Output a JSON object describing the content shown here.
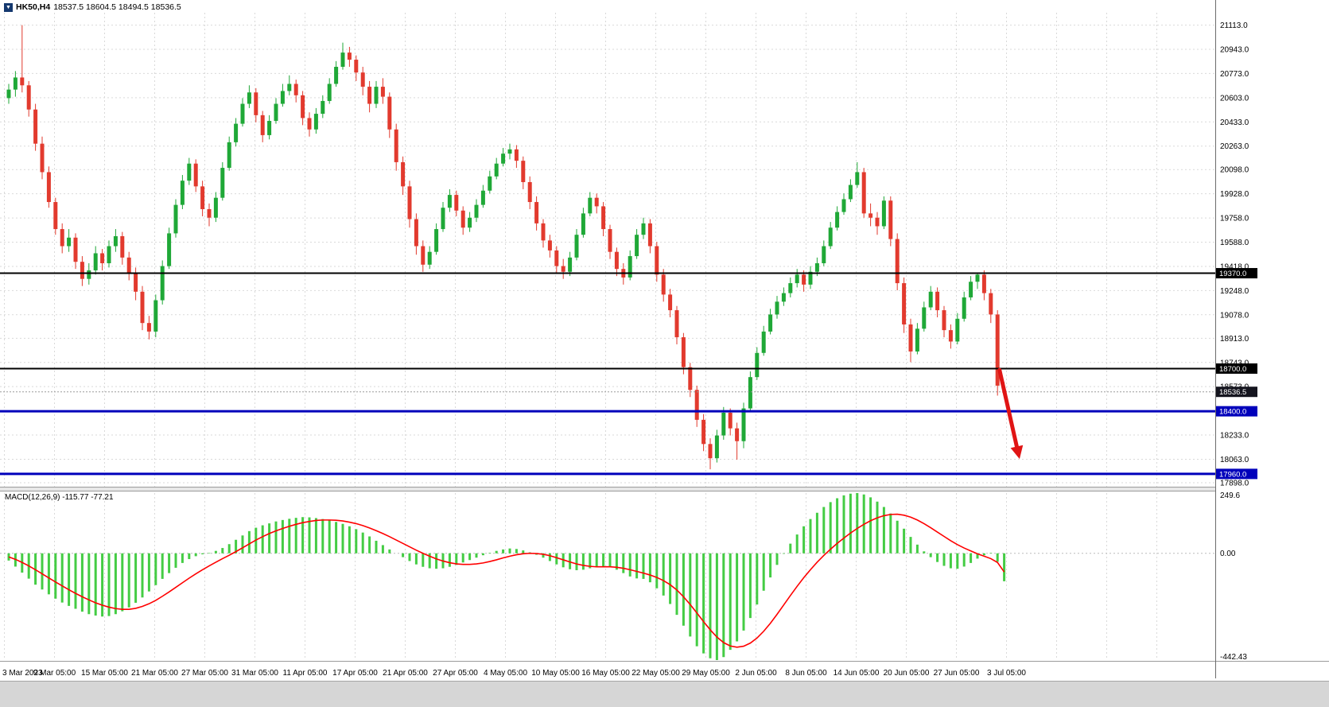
{
  "window": {
    "symbol_period": "HK50,H4",
    "ohlc_text": "18537.5 18604.5 18494.5 18536.5"
  },
  "indicator_label": "MACD(12,26,9) -115.77 -77.21",
  "price_axis": {
    "labels": [
      "21113.0",
      "20943.0",
      "20773.0",
      "20603.0",
      "20433.0",
      "20263.0",
      "20098.0",
      "19928.0",
      "19758.0",
      "19588.0",
      "19418.0",
      "19248.0",
      "19078.0",
      "18913.0",
      "18743.0",
      "18573.0",
      "18233.0",
      "18063.0",
      "17898.0"
    ],
    "badges": [
      {
        "value": "19370.0",
        "price": 19370.0,
        "color": "#000000"
      },
      {
        "value": "18700.0",
        "price": 18700.0,
        "color": "#000000"
      },
      {
        "value": "18536.5",
        "price": 18536.5,
        "color": "#15151f"
      },
      {
        "value": "18400.0",
        "price": 18400.0,
        "color": "#0000bb"
      },
      {
        "value": "17960.0",
        "price": 17960.0,
        "color": "#0000bb"
      }
    ]
  },
  "time_axis": {
    "labels": [
      "3 Mar 2023",
      "9 Mar 05:00",
      "15 Mar 05:00",
      "21 Mar 05:00",
      "27 Mar 05:00",
      "31 Mar 05:00",
      "11 Apr 05:00",
      "17 Apr 05:00",
      "21 Apr 05:00",
      "27 Apr 05:00",
      "4 May 05:00",
      "10 May 05:00",
      "16 May 05:00",
      "22 May 05:00",
      "29 May 05:00",
      "2 Jun 05:00",
      "8 Jun 05:00",
      "14 Jun 05:00",
      "20 Jun 05:00",
      "27 Jun 05:00",
      "3 Jul 05:00"
    ]
  },
  "macd_axis": {
    "max_label": "249.6",
    "zero_label": "0.00",
    "min_label": "-442.43"
  },
  "colors": {
    "candle_up": "#1fa837",
    "candle_down": "#e23a2e",
    "macd_histogram": "#44cc44",
    "macd_signal": "#ff0000",
    "grid": "#d9d9d9",
    "axis_line": "#6b6b6b",
    "arrow": "#e01414",
    "separator_fill": "#e8e8e8",
    "separator_edge": "#9a9a9a"
  },
  "chart_data": {
    "type": "candlestick",
    "title": "HK50,H4",
    "symbol": "HK50",
    "timeframe": "H4",
    "last_ohlc": {
      "open": 18537.5,
      "high": 18604.5,
      "low": 18494.5,
      "close": 18536.5
    },
    "bid_price": 18536.5,
    "price_axis_range": [
      17870,
      21200
    ],
    "levels": [
      {
        "price": 19370.0,
        "color": "#000000",
        "width": 2
      },
      {
        "price": 18700.0,
        "color": "#000000",
        "width": 2
      },
      {
        "price": 18400.0,
        "color": "#0000bb",
        "width": 3
      },
      {
        "price": 17960.0,
        "color": "#0000bb",
        "width": 3
      }
    ],
    "annotation_arrow": {
      "direction": "down-right",
      "color": "#e01414",
      "from": {
        "bar": 148.6,
        "price": 18690
      },
      "to": {
        "bar": 151.6,
        "price": 18065
      }
    },
    "candles": [
      [
        20600,
        20700,
        20560,
        20660
      ],
      [
        20660,
        20790,
        20610,
        20745
      ],
      [
        20745,
        21113,
        20640,
        20690
      ],
      [
        20690,
        20720,
        20470,
        20520
      ],
      [
        20520,
        20560,
        20230,
        20280
      ],
      [
        20280,
        20330,
        20030,
        20080
      ],
      [
        20080,
        20120,
        19830,
        19870
      ],
      [
        19870,
        19900,
        19640,
        19680
      ],
      [
        19680,
        19720,
        19510,
        19560
      ],
      [
        19560,
        19680,
        19520,
        19620
      ],
      [
        19620,
        19650,
        19400,
        19450
      ],
      [
        19450,
        19490,
        19280,
        19330
      ],
      [
        19330,
        19440,
        19290,
        19390
      ],
      [
        19390,
        19560,
        19360,
        19510
      ],
      [
        19510,
        19540,
        19390,
        19440
      ],
      [
        19440,
        19600,
        19410,
        19560
      ],
      [
        19560,
        19680,
        19520,
        19630
      ],
      [
        19630,
        19660,
        19430,
        19480
      ],
      [
        19480,
        19520,
        19320,
        19370
      ],
      [
        19370,
        19410,
        19180,
        19240
      ],
      [
        19240,
        19280,
        18970,
        19020
      ],
      [
        19020,
        19070,
        18905,
        18960
      ],
      [
        18960,
        19220,
        18920,
        19180
      ],
      [
        19180,
        19460,
        19150,
        19420
      ],
      [
        19420,
        19690,
        19400,
        19650
      ],
      [
        19650,
        19890,
        19620,
        19850
      ],
      [
        19850,
        20060,
        19820,
        20020
      ],
      [
        20020,
        20180,
        19990,
        20140
      ],
      [
        20140,
        20170,
        19940,
        19980
      ],
      [
        19980,
        20020,
        19770,
        19820
      ],
      [
        19820,
        19860,
        19700,
        19760
      ],
      [
        19760,
        19940,
        19730,
        19900
      ],
      [
        19900,
        20150,
        19880,
        20110
      ],
      [
        20110,
        20330,
        20090,
        20290
      ],
      [
        20290,
        20460,
        20260,
        20420
      ],
      [
        20420,
        20600,
        20400,
        20560
      ],
      [
        20560,
        20690,
        20530,
        20640
      ],
      [
        20640,
        20670,
        20430,
        20480
      ],
      [
        20480,
        20510,
        20290,
        20340
      ],
      [
        20340,
        20480,
        20310,
        20440
      ],
      [
        20440,
        20600,
        20420,
        20560
      ],
      [
        20560,
        20700,
        20540,
        20650
      ],
      [
        20650,
        20760,
        20620,
        20700
      ],
      [
        20700,
        20730,
        20570,
        20620
      ],
      [
        20620,
        20650,
        20410,
        20460
      ],
      [
        20460,
        20500,
        20330,
        20380
      ],
      [
        20380,
        20530,
        20350,
        20490
      ],
      [
        20490,
        20620,
        20460,
        20580
      ],
      [
        20580,
        20740,
        20560,
        20700
      ],
      [
        20700,
        20860,
        20680,
        20820
      ],
      [
        20820,
        20990,
        20800,
        20920
      ],
      [
        20920,
        20960,
        20820,
        20870
      ],
      [
        20870,
        20900,
        20720,
        20780
      ],
      [
        20780,
        20820,
        20620,
        20680
      ],
      [
        20680,
        20720,
        20500,
        20560
      ],
      [
        20560,
        20720,
        20530,
        20680
      ],
      [
        20680,
        20740,
        20560,
        20610
      ],
      [
        20610,
        20640,
        20320,
        20380
      ],
      [
        20380,
        20420,
        20090,
        20150
      ],
      [
        20150,
        20190,
        19920,
        19980
      ],
      [
        19980,
        20020,
        19690,
        19750
      ],
      [
        19750,
        19790,
        19500,
        19560
      ],
      [
        19560,
        19600,
        19380,
        19430
      ],
      [
        19430,
        19560,
        19400,
        19520
      ],
      [
        19520,
        19720,
        19500,
        19680
      ],
      [
        19680,
        19870,
        19660,
        19830
      ],
      [
        19830,
        19960,
        19800,
        19920
      ],
      [
        19920,
        19950,
        19770,
        19810
      ],
      [
        19810,
        19840,
        19640,
        19690
      ],
      [
        19690,
        19800,
        19660,
        19760
      ],
      [
        19760,
        19890,
        19730,
        19850
      ],
      [
        19850,
        19990,
        19830,
        19950
      ],
      [
        19950,
        20090,
        19930,
        20050
      ],
      [
        20050,
        20180,
        20030,
        20140
      ],
      [
        20140,
        20250,
        20120,
        20210
      ],
      [
        20210,
        20280,
        20170,
        20240
      ],
      [
        20240,
        20270,
        20110,
        20160
      ],
      [
        20160,
        20190,
        19960,
        20010
      ],
      [
        20010,
        20050,
        19820,
        19870
      ],
      [
        19870,
        19910,
        19670,
        19720
      ],
      [
        19720,
        19750,
        19550,
        19600
      ],
      [
        19600,
        19640,
        19480,
        19530
      ],
      [
        19530,
        19560,
        19370,
        19420
      ],
      [
        19420,
        19470,
        19330,
        19380
      ],
      [
        19380,
        19520,
        19350,
        19480
      ],
      [
        19480,
        19680,
        19460,
        19640
      ],
      [
        19640,
        19830,
        19620,
        19790
      ],
      [
        19790,
        19940,
        19770,
        19900
      ],
      [
        19900,
        19930,
        19790,
        19840
      ],
      [
        19840,
        19870,
        19630,
        19680
      ],
      [
        19680,
        19710,
        19470,
        19520
      ],
      [
        19520,
        19550,
        19350,
        19400
      ],
      [
        19400,
        19440,
        19290,
        19340
      ],
      [
        19340,
        19530,
        19320,
        19490
      ],
      [
        19490,
        19680,
        19470,
        19640
      ],
      [
        19640,
        19760,
        19610,
        19720
      ],
      [
        19720,
        19750,
        19510,
        19560
      ],
      [
        19560,
        19590,
        19310,
        19360
      ],
      [
        19360,
        19400,
        19170,
        19220
      ],
      [
        19220,
        19260,
        19060,
        19110
      ],
      [
        19110,
        19140,
        18870,
        18920
      ],
      [
        18920,
        18950,
        18660,
        18710
      ],
      [
        18710,
        18740,
        18500,
        18550
      ],
      [
        18550,
        18580,
        18290,
        18340
      ],
      [
        18340,
        18380,
        18120,
        18170
      ],
      [
        18170,
        18210,
        17992,
        18070
      ],
      [
        18070,
        18270,
        18040,
        18230
      ],
      [
        18230,
        18430,
        18200,
        18390
      ],
      [
        18390,
        18420,
        18230,
        18280
      ],
      [
        18280,
        18320,
        18060,
        18190
      ],
      [
        18190,
        18460,
        18140,
        18420
      ],
      [
        18420,
        18680,
        18400,
        18640
      ],
      [
        18640,
        18850,
        18620,
        18810
      ],
      [
        18810,
        19000,
        18790,
        18960
      ],
      [
        18960,
        19120,
        18940,
        19080
      ],
      [
        19080,
        19210,
        19050,
        19170
      ],
      [
        19170,
        19270,
        19140,
        19230
      ],
      [
        19230,
        19340,
        19200,
        19300
      ],
      [
        19300,
        19400,
        19270,
        19360
      ],
      [
        19360,
        19390,
        19240,
        19290
      ],
      [
        19290,
        19420,
        19260,
        19380
      ],
      [
        19380,
        19480,
        19350,
        19440
      ],
      [
        19440,
        19600,
        19420,
        19560
      ],
      [
        19560,
        19730,
        19540,
        19690
      ],
      [
        19690,
        19840,
        19670,
        19800
      ],
      [
        19800,
        19930,
        19780,
        19890
      ],
      [
        19890,
        20030,
        19870,
        19990
      ],
      [
        19990,
        20150,
        19970,
        20080
      ],
      [
        20080,
        20110,
        19760,
        19790
      ],
      [
        19790,
        19860,
        19700,
        19760
      ],
      [
        19760,
        19800,
        19640,
        19700
      ],
      [
        19700,
        19910,
        19680,
        19880
      ],
      [
        19880,
        19910,
        19560,
        19610
      ],
      [
        19610,
        19650,
        19250,
        19300
      ],
      [
        19300,
        19340,
        18950,
        19010
      ],
      [
        19010,
        19050,
        18745,
        18820
      ],
      [
        18820,
        19020,
        18800,
        18980
      ],
      [
        18980,
        19170,
        18960,
        19130
      ],
      [
        19130,
        19280,
        19110,
        19240
      ],
      [
        19240,
        19270,
        19060,
        19110
      ],
      [
        19110,
        19140,
        18920,
        18970
      ],
      [
        18970,
        19010,
        18840,
        18890
      ],
      [
        18890,
        19090,
        18870,
        19050
      ],
      [
        19050,
        19240,
        19030,
        19200
      ],
      [
        19200,
        19350,
        19180,
        19310
      ],
      [
        19310,
        19370,
        19260,
        19360
      ],
      [
        19360,
        19390,
        19180,
        19230
      ],
      [
        19230,
        19260,
        19020,
        19080
      ],
      [
        19080,
        19110,
        18510,
        18580
      ],
      [
        18537.5,
        18604.5,
        18494.5,
        18536.5
      ]
    ],
    "macd": {
      "label": "MACD(12,26,9)",
      "macd_value": -115.77,
      "signal_value": -77.21,
      "range": [
        -442.43,
        249.6
      ],
      "histogram": [
        -30,
        -55,
        -80,
        -105,
        -130,
        -150,
        -170,
        -188,
        -204,
        -218,
        -230,
        -242,
        -252,
        -258,
        -262,
        -260,
        -252,
        -240,
        -224,
        -205,
        -183,
        -158,
        -132,
        -106,
        -82,
        -60,
        -40,
        -24,
        -12,
        -4,
        2,
        10,
        22,
        38,
        56,
        74,
        92,
        106,
        116,
        124,
        132,
        138,
        143,
        147,
        150,
        149,
        146,
        142,
        137,
        130,
        122,
        112,
        100,
        86,
        70,
        52,
        34,
        16,
        0,
        -16,
        -32,
        -46,
        -56,
        -62,
        -64,
        -62,
        -56,
        -48,
        -38,
        -28,
        -18,
        -8,
        2,
        10,
        16,
        20,
        18,
        12,
        4,
        -6,
        -18,
        -32,
        -46,
        -58,
        -66,
        -70,
        -68,
        -62,
        -56,
        -54,
        -58,
        -68,
        -82,
        -96,
        -104,
        -106,
        -120,
        -145,
        -175,
        -210,
        -255,
        -300,
        -345,
        -385,
        -415,
        -435,
        -442.43,
        -430,
        -400,
        -365,
        -320,
        -268,
        -212,
        -155,
        -100,
        -48,
        -2,
        40,
        78,
        112,
        142,
        168,
        192,
        212,
        228,
        240,
        247,
        249.6,
        244,
        232,
        214,
        192,
        165,
        135,
        102,
        68,
        36,
        8,
        -16,
        -36,
        -52,
        -62,
        -64,
        -55,
        -40,
        -22,
        -8,
        2,
        -35,
        -115.77
      ],
      "signal": [
        -15,
        -25,
        -38,
        -52,
        -68,
        -85,
        -102,
        -119,
        -135,
        -151,
        -166,
        -180,
        -193,
        -205,
        -215,
        -223,
        -229,
        -232,
        -232,
        -228,
        -220,
        -209,
        -195,
        -178,
        -160,
        -141,
        -122,
        -103,
        -85,
        -68,
        -52,
        -37,
        -22,
        -8,
        7,
        23,
        39,
        55,
        69,
        82,
        93,
        103,
        112,
        120,
        127,
        132,
        136,
        138,
        138,
        137,
        134,
        129,
        123,
        115,
        105,
        94,
        82,
        69,
        55,
        41,
        27,
        13,
        0,
        -12,
        -23,
        -32,
        -39,
        -44,
        -46,
        -46,
        -44,
        -40,
        -34,
        -27,
        -19,
        -12,
        -6,
        -2,
        0,
        -1,
        -4,
        -10,
        -18,
        -27,
        -36,
        -44,
        -50,
        -54,
        -56,
        -56,
        -56,
        -58,
        -62,
        -68,
        -75,
        -82,
        -90,
        -100,
        -113,
        -130,
        -152,
        -180,
        -212,
        -247,
        -283,
        -317,
        -347,
        -370,
        -384,
        -389,
        -385,
        -372,
        -351,
        -323,
        -290,
        -253,
        -214,
        -175,
        -137,
        -101,
        -68,
        -37,
        -9,
        17,
        41,
        63,
        84,
        103,
        120,
        135,
        147,
        156,
        161,
        162,
        158,
        150,
        138,
        123,
        106,
        88,
        70,
        52,
        36,
        22,
        10,
        -2,
        -12,
        -22,
        -38,
        -77.21
      ]
    }
  }
}
